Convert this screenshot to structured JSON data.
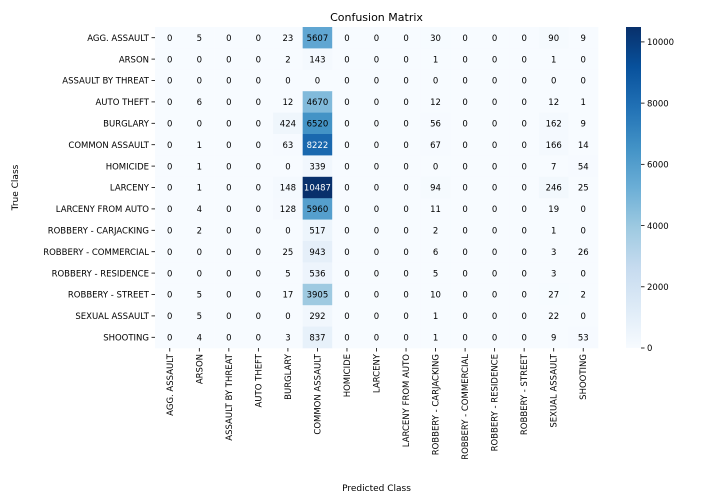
{
  "chart_data": {
    "type": "heatmap",
    "title": "Confusion Matrix",
    "xlabel": "Predicted Class",
    "ylabel": "True Class",
    "classes": [
      "AGG. ASSAULT",
      "ARSON",
      "ASSAULT BY THREAT",
      "AUTO THEFT",
      "BURGLARY",
      "COMMON ASSAULT",
      "HOMICIDE",
      "LARCENY",
      "LARCENY FROM AUTO",
      "ROBBERY - CARJACKING",
      "ROBBERY - COMMERCIAL",
      "ROBBERY - RESIDENCE",
      "ROBBERY - STREET",
      "SEXUAL ASSAULT",
      "SHOOTING"
    ],
    "values": [
      [
        0,
        5,
        0,
        0,
        23,
        5607,
        0,
        0,
        0,
        30,
        0,
        0,
        0,
        90,
        9
      ],
      [
        0,
        0,
        0,
        0,
        2,
        143,
        0,
        0,
        0,
        1,
        0,
        0,
        0,
        1,
        0
      ],
      [
        0,
        0,
        0,
        0,
        0,
        0,
        0,
        0,
        0,
        0,
        0,
        0,
        0,
        0,
        0
      ],
      [
        0,
        6,
        0,
        0,
        12,
        4670,
        0,
        0,
        0,
        12,
        0,
        0,
        0,
        12,
        1
      ],
      [
        0,
        0,
        0,
        0,
        424,
        6520,
        0,
        0,
        0,
        56,
        0,
        0,
        0,
        162,
        9
      ],
      [
        0,
        1,
        0,
        0,
        63,
        8222,
        0,
        0,
        0,
        67,
        0,
        0,
        0,
        166,
        14
      ],
      [
        0,
        1,
        0,
        0,
        0,
        339,
        0,
        0,
        0,
        0,
        0,
        0,
        0,
        7,
        54
      ],
      [
        0,
        1,
        0,
        0,
        148,
        10487,
        0,
        0,
        0,
        94,
        0,
        0,
        0,
        246,
        25
      ],
      [
        0,
        4,
        0,
        0,
        128,
        5960,
        0,
        0,
        0,
        11,
        0,
        0,
        0,
        19,
        0
      ],
      [
        0,
        2,
        0,
        0,
        0,
        517,
        0,
        0,
        0,
        2,
        0,
        0,
        0,
        1,
        0
      ],
      [
        0,
        0,
        0,
        0,
        25,
        943,
        0,
        0,
        0,
        6,
        0,
        0,
        0,
        3,
        26
      ],
      [
        0,
        0,
        0,
        0,
        5,
        536,
        0,
        0,
        0,
        5,
        0,
        0,
        0,
        3,
        0
      ],
      [
        0,
        5,
        0,
        0,
        17,
        3905,
        0,
        0,
        0,
        10,
        0,
        0,
        0,
        27,
        2
      ],
      [
        0,
        5,
        0,
        0,
        0,
        292,
        0,
        0,
        0,
        1,
        0,
        0,
        0,
        22,
        0
      ],
      [
        0,
        4,
        0,
        0,
        3,
        837,
        0,
        0,
        0,
        1,
        0,
        0,
        0,
        9,
        53
      ]
    ],
    "colorbar": {
      "colormap": "Blues",
      "vmin": 0,
      "vmax": 10487,
      "ticks": [
        0,
        2000,
        4000,
        6000,
        8000,
        10000
      ],
      "colors": [
        "#f7fbff",
        "#deebf7",
        "#c6dbef",
        "#9ecae1",
        "#6baed6",
        "#4292c6",
        "#2171b5",
        "#08519c",
        "#08306b"
      ]
    },
    "annotation_colors": {
      "light": "#000000",
      "dark": "#ffffff"
    }
  }
}
